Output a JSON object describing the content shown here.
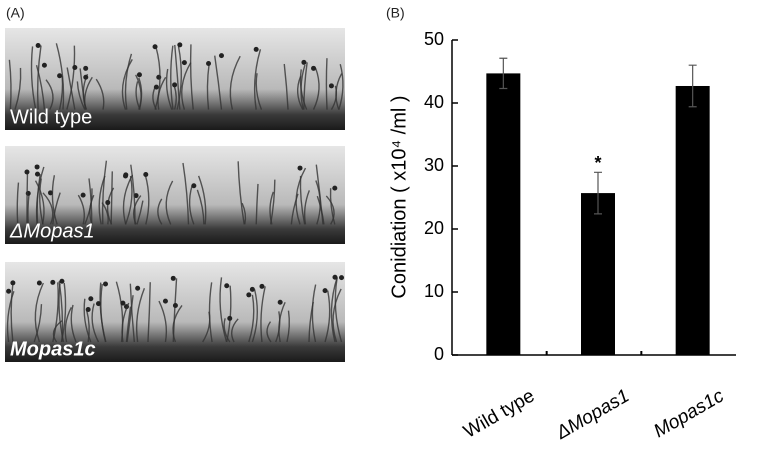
{
  "panel_a": {
    "label": "(A)",
    "images": [
      {
        "label": "Wild type"
      },
      {
        "label": "ΔMopas1"
      },
      {
        "label": "Mopas1c"
      }
    ]
  },
  "chart_data": {
    "type": "bar",
    "panel_label": "(B)",
    "y_label": "Conidiation ( x10⁴ /ml )",
    "categories": [
      "Wild type",
      "ΔMopas1",
      "Mopas1c"
    ],
    "italic_categories": [
      "ΔMopas1",
      "Mopas1c"
    ],
    "values": [
      44.7,
      25.7,
      42.7
    ],
    "errors": [
      2.4,
      3.3,
      3.3
    ],
    "color": "#000000",
    "ylim": [
      0,
      50
    ],
    "yticks": [
      0,
      10,
      20,
      30,
      40,
      50
    ],
    "annotations": [
      {
        "text": "*",
        "category": "ΔMopas1"
      }
    ]
  }
}
